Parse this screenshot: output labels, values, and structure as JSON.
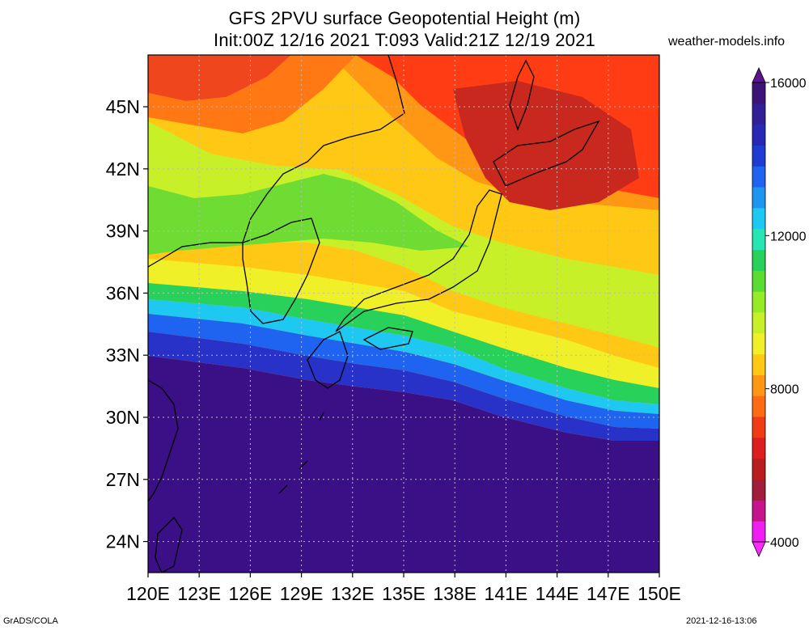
{
  "header": {
    "title_line1": "GFS 2PVU surface Geopotential Height (m)",
    "title_line2": "Init:00Z 12/16 2021 T:093 Valid:21Z 12/19 2021",
    "site": "weather-models.info"
  },
  "footer": {
    "left": "GrADS/COLA",
    "right": "2021-12-16-13:06"
  },
  "map": {
    "lon_range": [
      120,
      150
    ],
    "lat_range": [
      22.5,
      47.5
    ],
    "grid": true,
    "background_fill": "#3b0f86",
    "coastline_color": "#000000",
    "y_ticks": [
      {
        "value": 45,
        "label": "45N"
      },
      {
        "value": 42,
        "label": "42N"
      },
      {
        "value": 39,
        "label": "39N"
      },
      {
        "value": 36,
        "label": "36N"
      },
      {
        "value": 33,
        "label": "33N"
      },
      {
        "value": 30,
        "label": "30N"
      },
      {
        "value": 27,
        "label": "27N"
      },
      {
        "value": 24,
        "label": "24N"
      }
    ],
    "x_ticks": [
      {
        "value": 120,
        "label": "120E"
      },
      {
        "value": 123,
        "label": "123E"
      },
      {
        "value": 126,
        "label": "126E"
      },
      {
        "value": 129,
        "label": "129E"
      },
      {
        "value": 132,
        "label": "132E"
      },
      {
        "value": 135,
        "label": "135E"
      },
      {
        "value": 138,
        "label": "138E"
      },
      {
        "value": 141,
        "label": "141E"
      },
      {
        "value": 144,
        "label": "144E"
      },
      {
        "value": 147,
        "label": "147E"
      },
      {
        "value": 150,
        "label": "150E"
      }
    ]
  },
  "colorbar": {
    "min": 4000,
    "max": 16000,
    "labels": [
      {
        "value": 16000,
        "label": "16000"
      },
      {
        "value": 12000,
        "label": "12000"
      },
      {
        "value": 8000,
        "label": "8000"
      },
      {
        "value": 4000,
        "label": "4000"
      }
    ],
    "colors": [
      "#f01ef0",
      "#c8148c",
      "#a01e3c",
      "#b91e1e",
      "#dc1e1e",
      "#f03c14",
      "#ff6a14",
      "#ff9614",
      "#ffc814",
      "#f0f028",
      "#c8f028",
      "#96eb28",
      "#5adc32",
      "#28d25a",
      "#28e6b4",
      "#1ec8f0",
      "#1e96f0",
      "#1e64f0",
      "#1e3cd2",
      "#2828b4",
      "#321e96",
      "#3c1478"
    ],
    "over_color": "#5a1490",
    "under_color": "#ff28ff"
  }
}
